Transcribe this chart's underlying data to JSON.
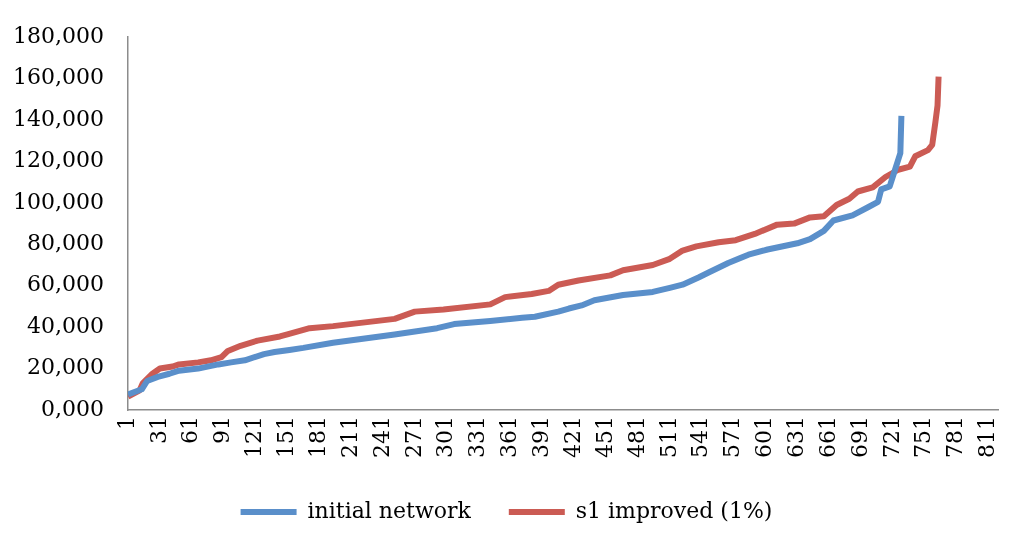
{
  "chart_data": {
    "type": "line",
    "xlim": [
      1,
      820
    ],
    "xticks": [
      1,
      31,
      61,
      91,
      121,
      151,
      181,
      211,
      241,
      271,
      301,
      331,
      361,
      391,
      421,
      451,
      481,
      511,
      541,
      571,
      601,
      631,
      661,
      691,
      721,
      751,
      781,
      811
    ],
    "ylim": [
      0,
      180000
    ],
    "yticks": [
      {
        "value": 0,
        "label": "0,000"
      },
      {
        "value": 20000,
        "label": "20,000"
      },
      {
        "value": 40000,
        "label": "40,000"
      },
      {
        "value": 60000,
        "label": "60,000"
      },
      {
        "value": 80000,
        "label": "80,000"
      },
      {
        "value": 100000,
        "label": "100,000"
      },
      {
        "value": 120000,
        "label": "120,000"
      },
      {
        "value": 140000,
        "label": "140,000"
      },
      {
        "value": 160000,
        "label": "160,000"
      },
      {
        "value": 180000,
        "label": "180,000"
      }
    ],
    "legend": "bottom",
    "series": [
      {
        "name": "initial network",
        "color": "#5a8fca",
        "x": [
          1,
          14,
          19,
          29,
          40,
          49,
          67,
          86,
          98,
          111,
          129,
          139,
          153,
          166,
          194,
          252,
          292,
          308,
          342,
          372,
          384,
          406,
          416,
          428,
          440,
          467,
          495,
          511,
          523,
          538,
          548,
          566,
          585,
          603,
          631,
          643,
          656,
          665,
          683,
          698,
          707,
          710,
          718,
          723,
          728,
          729
        ],
        "values": [
          7500,
          10000,
          14000,
          16000,
          17500,
          19000,
          20000,
          22000,
          23000,
          24000,
          27000,
          28000,
          29000,
          30000,
          32500,
          36500,
          39500,
          41500,
          43000,
          44500,
          45000,
          47500,
          49000,
          50500,
          53000,
          55500,
          57000,
          59000,
          60500,
          64000,
          66500,
          71000,
          75000,
          77500,
          80500,
          82500,
          86500,
          91500,
          94000,
          98000,
          100500,
          106500,
          108000,
          116000,
          124000,
          142000
        ]
      },
      {
        "name": "s1 improved (1%)",
        "color": "#cb5b54",
        "x": [
          1,
          12,
          15,
          24,
          31,
          43,
          49,
          67,
          79,
          89,
          95,
          107,
          123,
          144,
          151,
          172,
          194,
          252,
          271,
          298,
          342,
          356,
          381,
          397,
          406,
          425,
          455,
          467,
          495,
          511,
          523,
          536,
          557,
          573,
          591,
          612,
          628,
          643,
          656,
          668,
          680,
          688,
          702,
          714,
          726,
          737,
          742,
          754,
          758,
          761,
          763,
          764
        ],
        "values": [
          6500,
          9500,
          13000,
          17500,
          20000,
          21000,
          22000,
          23000,
          24000,
          25500,
          28500,
          31000,
          33500,
          35500,
          36500,
          39500,
          40500,
          44000,
          47500,
          48500,
          51000,
          54500,
          56000,
          57500,
          60500,
          62500,
          65000,
          67500,
          70000,
          73000,
          77000,
          79000,
          81000,
          82000,
          85000,
          89500,
          90000,
          93000,
          93500,
          99000,
          102000,
          105500,
          107500,
          112500,
          116000,
          117500,
          122500,
          125500,
          128000,
          139000,
          147000,
          161000
        ]
      }
    ]
  }
}
